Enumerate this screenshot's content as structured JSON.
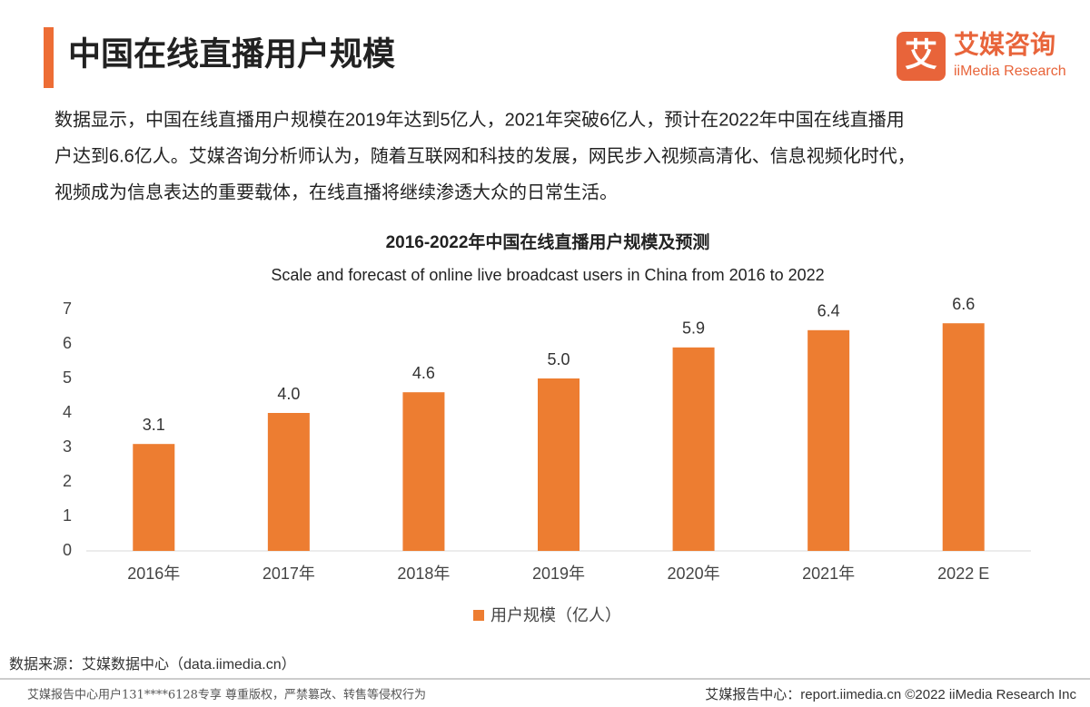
{
  "header": {
    "title": "中国在线直播用户规模",
    "logo_cn": "艾媒咨询",
    "logo_en": "iiMedia Research",
    "logo_mark": "艾"
  },
  "paragraph": {
    "lines": [
      "数据显示，中国在线直播用户规模在2019年达到5亿人，2021年突破6亿人，预计在2022年中国在线直播用",
      "户达到6.6亿人。艾媒咨询分析师认为，随着互联网和科技的发展，网民步入视频高清化、信息视频化时代，",
      "视频成为信息表达的重要载体，在线直播将继续渗透大众的日常生活。"
    ]
  },
  "chart_data": {
    "type": "bar",
    "title": "2016-2022年中国在线直播用户规模及预测",
    "subtitle": "Scale and forecast of online live broadcast users in China from 2016 to 2022",
    "categories": [
      "2016年",
      "2017年",
      "2018年",
      "2019年",
      "2020年",
      "2021年",
      "2022 E"
    ],
    "series": [
      {
        "name": "用户规模（亿人）",
        "color": "#ed7d31",
        "values": [
          3.1,
          4,
          4.6,
          5,
          5.9,
          6.4,
          6.6
        ],
        "value_labels": [
          "3.1",
          "4.0",
          "4.6",
          "5.0",
          "5.9",
          "6.4",
          "6.6"
        ]
      }
    ],
    "ylim": [
      0,
      7
    ],
    "yticks": [
      0,
      1,
      2,
      3,
      4,
      5,
      6,
      7
    ],
    "grid": false,
    "legend": "bottom"
  },
  "source": "数据来源：艾媒数据中心（data.iimedia.cn）",
  "footer": {
    "left": "艾媒报告中心用户131****6128专享 尊重版权，严禁篡改、转售等侵权行为",
    "right": "艾媒报告中心：report.iimedia.cn   ©2022  iiMedia Research  Inc"
  }
}
